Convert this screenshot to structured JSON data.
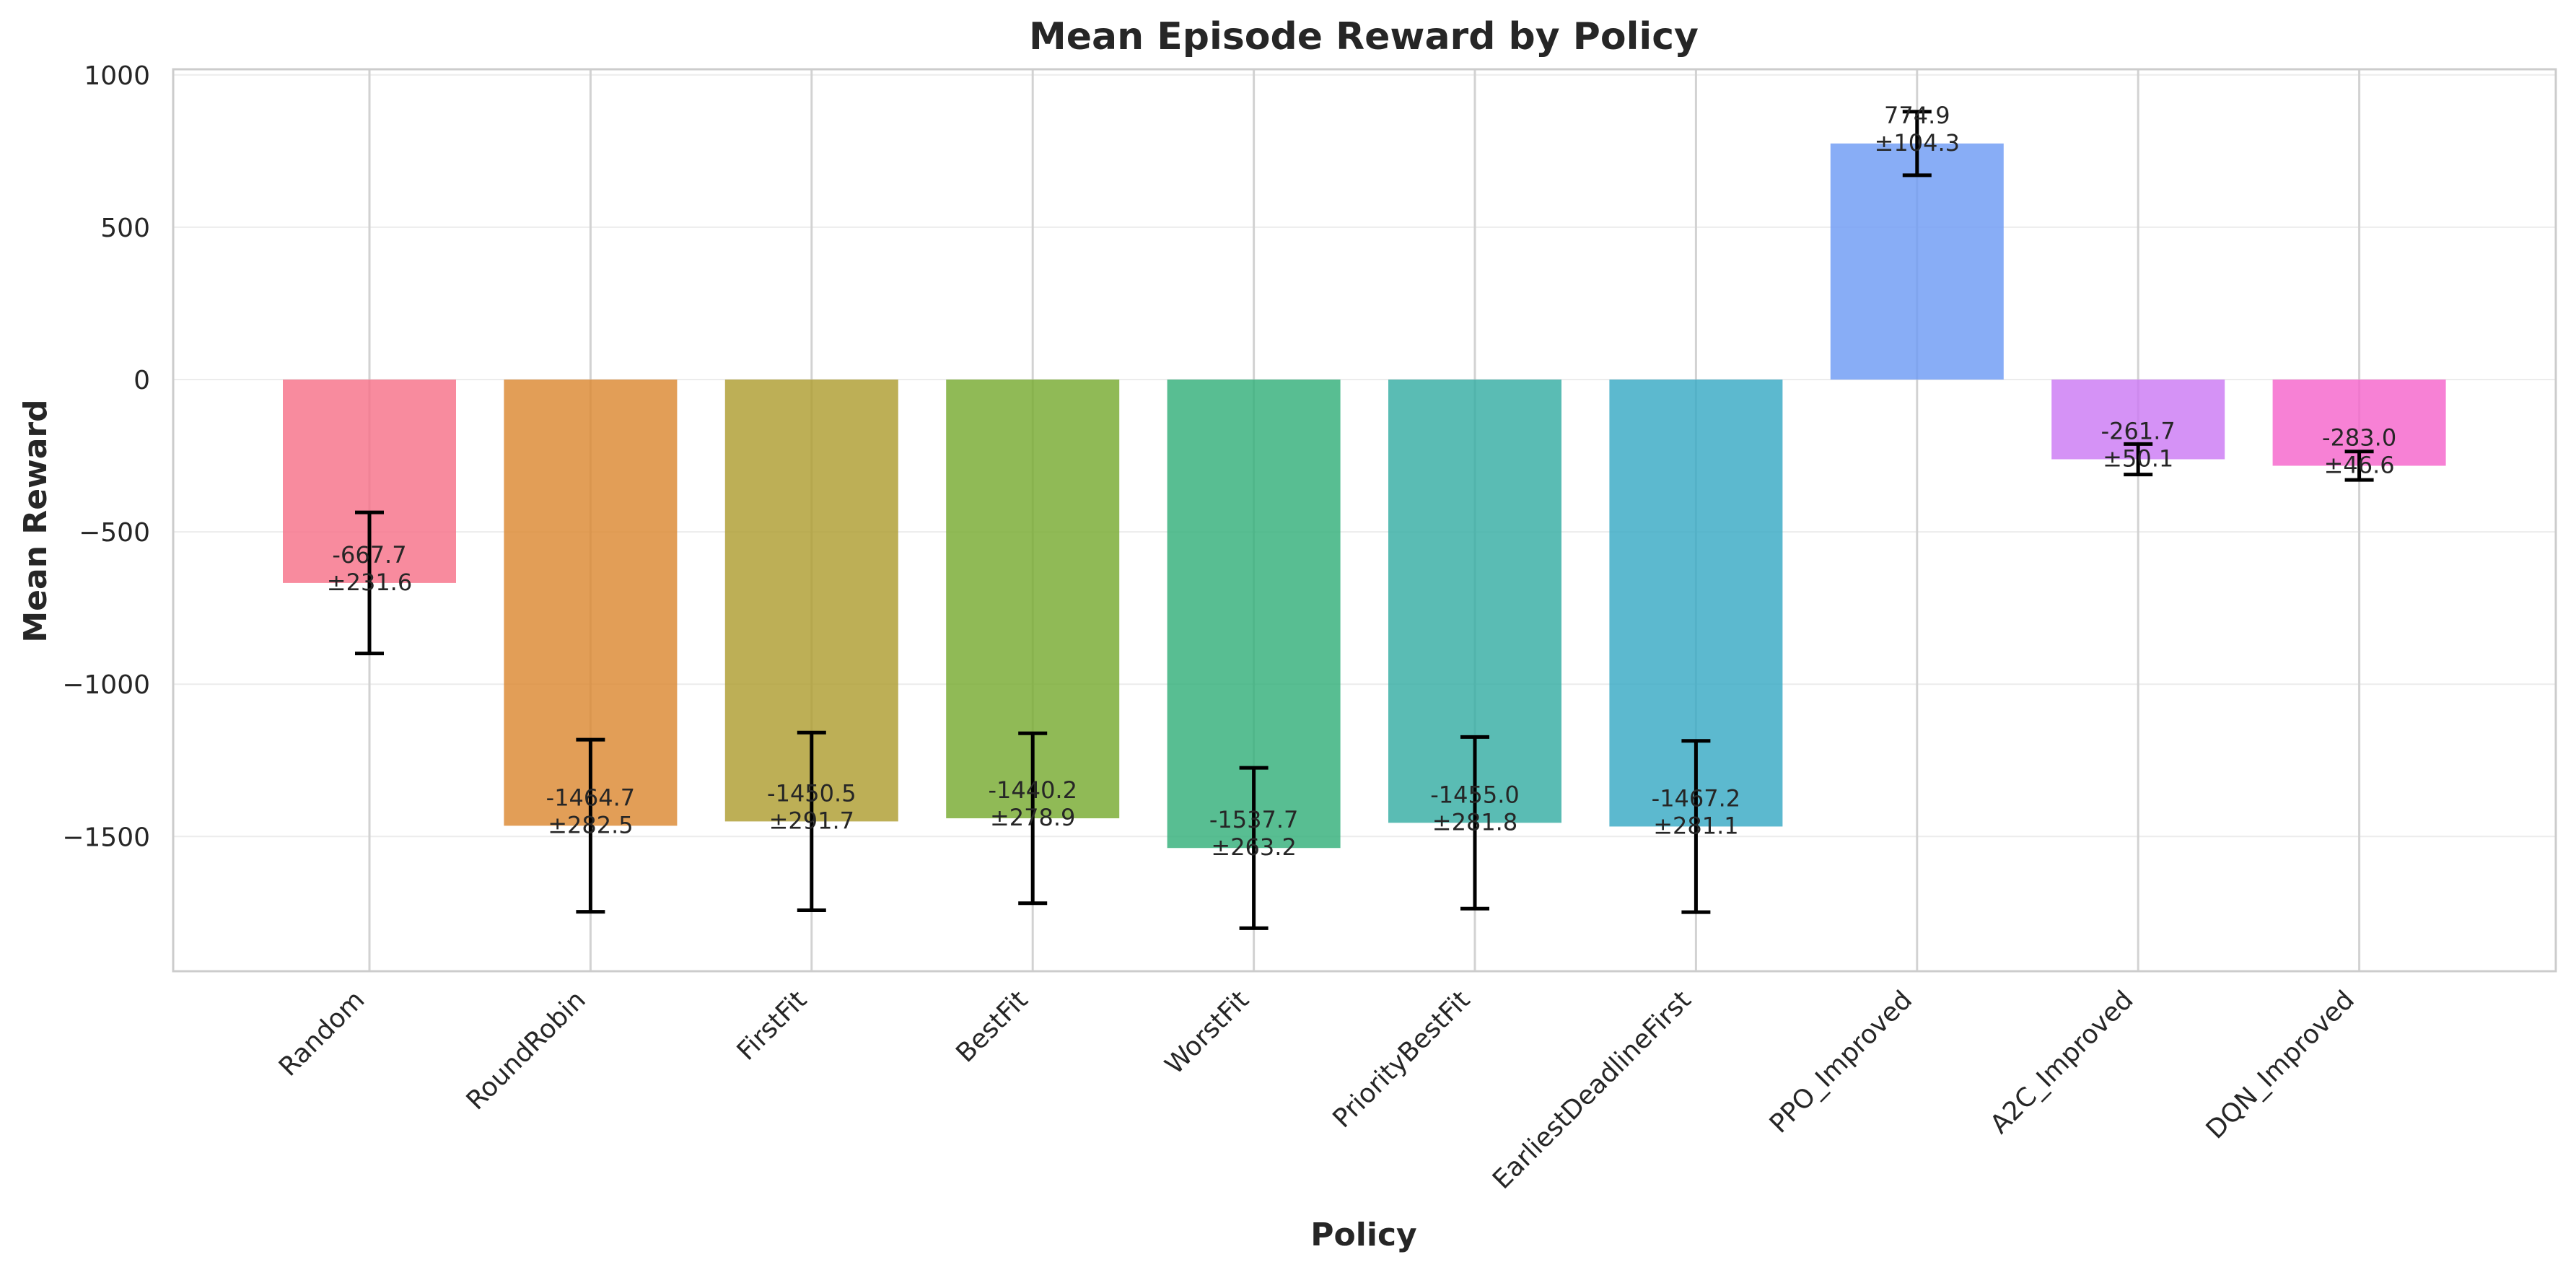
{
  "chart_data": {
    "type": "bar",
    "title": "Mean Episode Reward by Policy",
    "xlabel": "Policy",
    "ylabel": "Mean Reward",
    "categories": [
      "Random",
      "RoundRobin",
      "FirstFit",
      "BestFit",
      "WorstFit",
      "PriorityBestFit",
      "EarliestDeadlineFirst",
      "PPO_Improved",
      "A2C_Improved",
      "DQN_Improved"
    ],
    "values": [
      -667.7,
      -1464.7,
      -1450.5,
      -1440.2,
      -1537.7,
      -1455.0,
      -1467.2,
      774.9,
      -261.7,
      -283.0
    ],
    "errors": [
      231.6,
      282.5,
      291.7,
      278.9,
      263.2,
      281.8,
      281.1,
      104.3,
      50.1,
      46.6
    ],
    "value_labels": [
      "-667.7",
      "-1464.7",
      "-1450.5",
      "-1440.2",
      "-1537.7",
      "-1455.0",
      "-1467.2",
      "774.9",
      "-261.7",
      "-283.0"
    ],
    "error_labels": [
      "±231.6",
      "±282.5",
      "±291.7",
      "±278.9",
      "±263.2",
      "±281.8",
      "±281.1",
      "±104.3",
      "±50.1",
      "±46.6"
    ],
    "colors": [
      "#f77189",
      "#dc8932",
      "#ae9d31",
      "#77ab31",
      "#33b07a",
      "#36ada4",
      "#38a9c5",
      "#6e9bf4",
      "#cc7af4",
      "#f565cc"
    ],
    "yticks": [
      1000,
      500,
      0,
      -500,
      -1000,
      -1500
    ],
    "ytick_labels": [
      "1000",
      "500",
      "0",
      "−500",
      "−1000",
      "−1500"
    ],
    "ylim": [
      -1935,
      1020
    ],
    "grid": true,
    "legend": "none"
  }
}
